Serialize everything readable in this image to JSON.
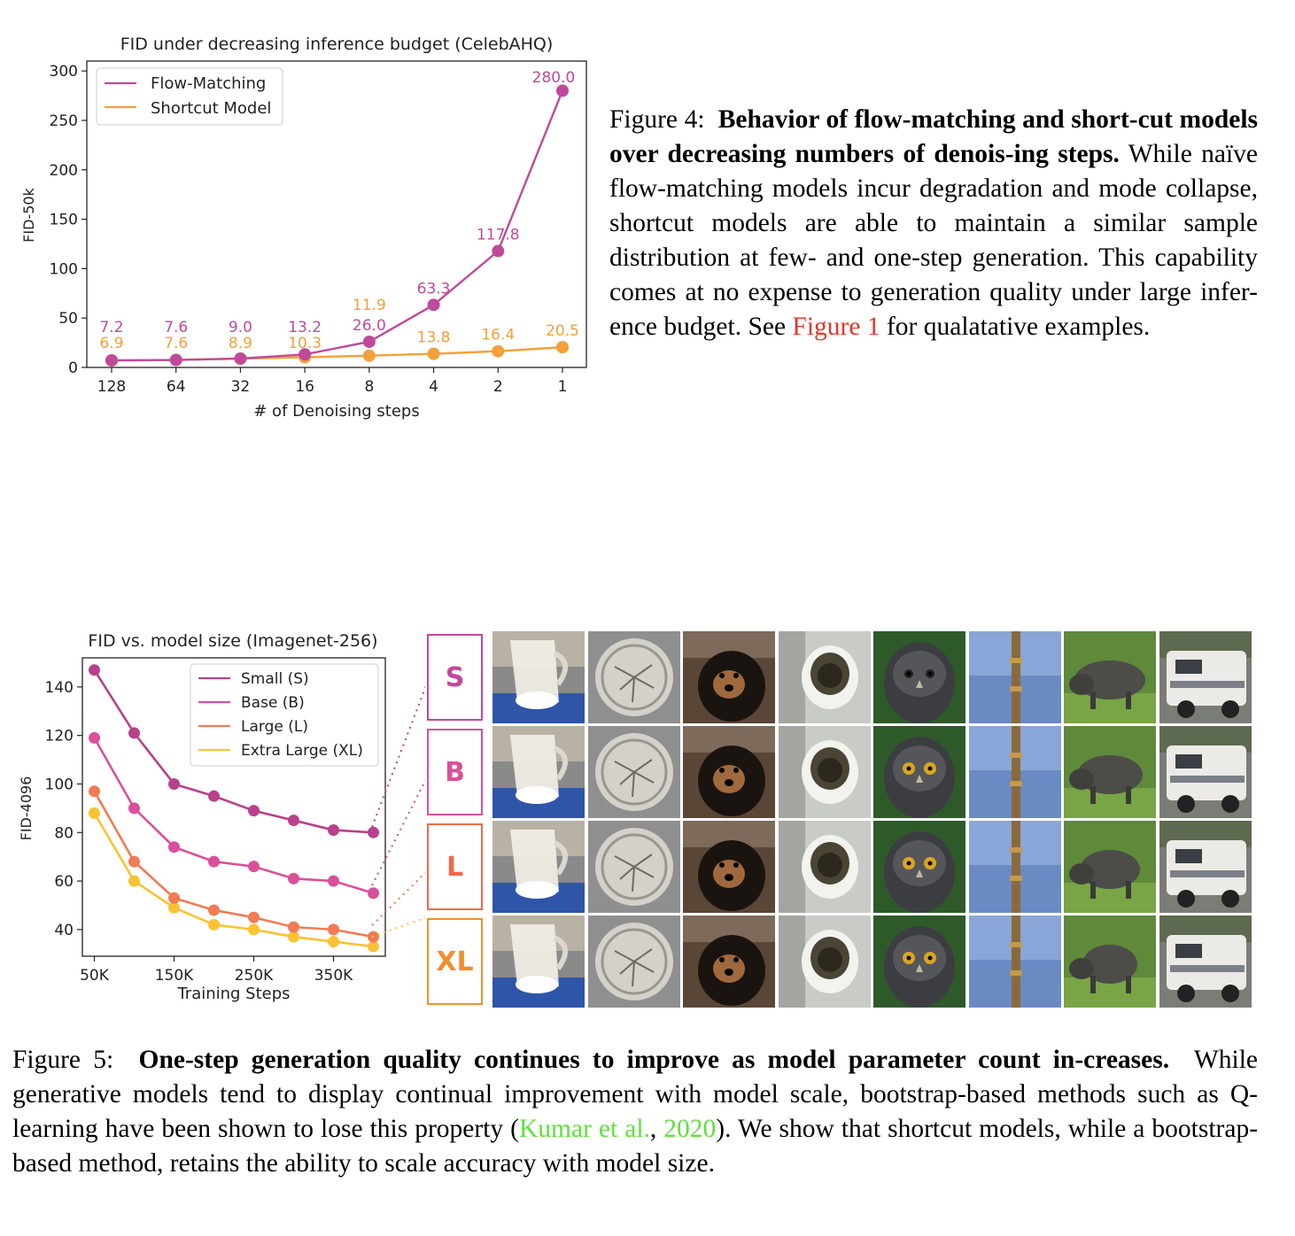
{
  "figure4": {
    "chart_data": {
      "type": "line",
      "title": "FID under decreasing inference budget (CelebAHQ)",
      "xlabel": "# of Denoising steps",
      "ylabel": "FID-50k",
      "categories": [
        "128",
        "64",
        "32",
        "16",
        "8",
        "4",
        "2",
        "1"
      ],
      "ylim": [
        0,
        310
      ],
      "yticks": [
        "0",
        "50",
        "100",
        "150",
        "200",
        "250",
        "300"
      ],
      "legend_position": "top-left",
      "grid": false,
      "series": [
        {
          "name": "Flow-Matching",
          "color": "#bf4a9a",
          "values": [
            7.2,
            7.6,
            9.0,
            13.2,
            26.0,
            63.3,
            117.8,
            280.0
          ],
          "labels": [
            "7.2",
            "7.6",
            "9.0",
            "13.2",
            "26.0",
            "63.3",
            "117.8",
            "280.0"
          ]
        },
        {
          "name": "Shortcut Model",
          "color": "#f2a03a",
          "values": [
            6.9,
            7.6,
            8.9,
            10.3,
            11.9,
            13.8,
            16.4,
            20.5
          ],
          "labels": [
            "6.9",
            "7.6",
            "8.9",
            "10.3",
            "11.9",
            "13.8",
            "16.4",
            "20.5"
          ]
        }
      ]
    },
    "caption": {
      "prefix": "Figure 4:",
      "bold": "Behavior of flow-matching and short-cut models over decreasing numbers of denois-ing steps.",
      "text_before_link": "While naïve flow-matching models incur degradation and mode collapse, shortcut models are able to maintain a similar sample distribution at few- and one-step generation. This capability comes at no expense to generation quality under large infer-ence budget. See",
      "link": "Figure 1",
      "text_after_link": "for qualatative examples."
    }
  },
  "figure5": {
    "chart_data": {
      "type": "line",
      "title": "FID vs. model size (Imagenet-256)",
      "xlabel": "Training Steps",
      "ylabel": "FID-4096",
      "x": [
        50000,
        100000,
        150000,
        200000,
        250000,
        300000,
        350000,
        400000
      ],
      "xticks": [
        "50K",
        "150K",
        "250K",
        "350K"
      ],
      "xtick_values": [
        50000,
        150000,
        250000,
        350000
      ],
      "xlim": [
        35000,
        415000
      ],
      "yticks": [
        "40",
        "60",
        "80",
        "100",
        "120",
        "140"
      ],
      "ytick_values": [
        40,
        60,
        80,
        100,
        120,
        140
      ],
      "ylim": [
        29,
        152
      ],
      "legend_position": "top-right",
      "grid": false,
      "series": [
        {
          "name": "Small (S)",
          "color": "#b8418b",
          "values": [
            147,
            121,
            100,
            95,
            89,
            85,
            81,
            80
          ]
        },
        {
          "name": "Base (B)",
          "color": "#d9509a",
          "values": [
            119,
            90,
            74,
            68,
            66,
            61,
            60,
            55
          ]
        },
        {
          "name": "Large (L)",
          "color": "#f07b55",
          "values": [
            97,
            68,
            53,
            48,
            45,
            41,
            40,
            37
          ]
        },
        {
          "name": "Extra Large (XL)",
          "color": "#fbc233",
          "values": [
            88,
            60,
            49,
            42,
            40,
            37,
            35,
            33
          ]
        }
      ]
    },
    "row_labels": [
      {
        "text": "S",
        "color": "#c2479a"
      },
      {
        "text": "B",
        "color": "#d9509a"
      },
      {
        "text": "L",
        "color": "#ee6a4c"
      },
      {
        "text": "XL",
        "color": "#f0902e"
      }
    ],
    "sample_columns": [
      "glass-pitcher",
      "metal-coin",
      "dog",
      "toilet",
      "owl",
      "pole",
      "boar",
      "rv-camper"
    ],
    "caption": {
      "prefix": "Figure 5:",
      "bold": "One-step generation quality continues to improve as model parameter count in-creases.",
      "text_before_link": "While generative models tend to display continual improvement with model scale, bootstrap-based methods such as Q-learning have been shown to lose this property (",
      "link1": "Kumar et al.",
      "between": ",",
      "link2": "2020",
      "text_after_link": "). We show that shortcut models, while a bootstrap-based method, retains the ability to scale accuracy with model size."
    }
  }
}
